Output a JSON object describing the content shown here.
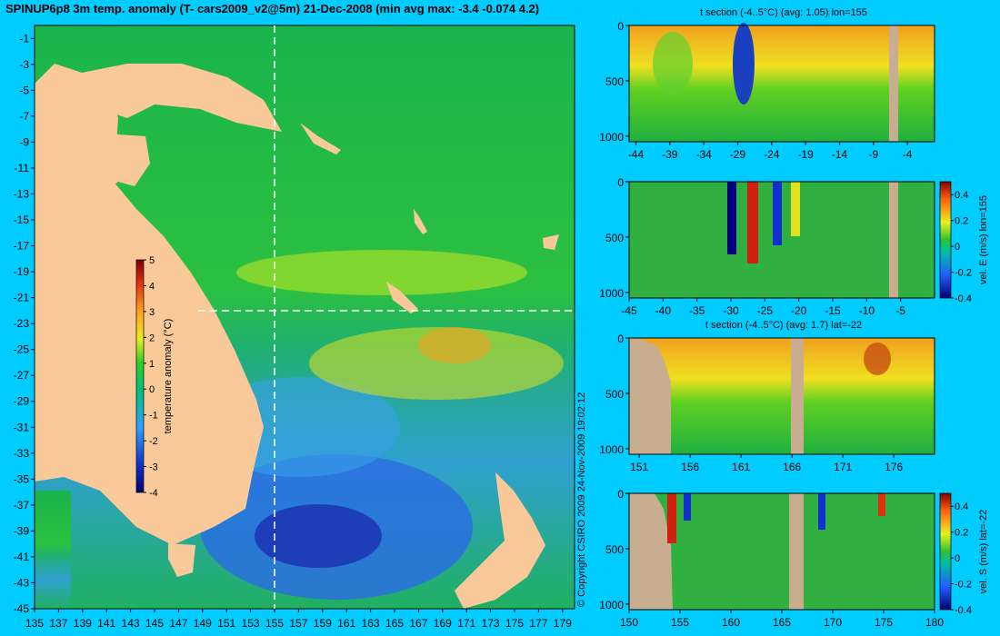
{
  "header": {
    "title": "SPINUP6p8 3m temp. anomaly (T- cars2009_v2@5m) 21-Dec-2008 (min avg max: -3.4 -0.074 4.2)"
  },
  "colors": {
    "background": "#00ccff",
    "land": "#f9c99a",
    "section_land": "#c8ad90",
    "ocean_base": "#16b04a"
  },
  "copyright": "© Copyright CSIRO 2009   24-Nov-2009 19:02:12",
  "chart_data": [
    {
      "type": "heatmap",
      "id": "map",
      "title": "",
      "xlabel": "",
      "ylabel": "",
      "x_ticks": [
        "135",
        "137",
        "139",
        "141",
        "143",
        "145",
        "147",
        "149",
        "151",
        "153",
        "155",
        "157",
        "159",
        "161",
        "163",
        "165",
        "167",
        "169",
        "171",
        "173",
        "175",
        "177",
        "179"
      ],
      "y_ticks": [
        "-1",
        "-3",
        "-5",
        "-7",
        "-9",
        "-11",
        "-13",
        "-15",
        "-17",
        "-19",
        "-21",
        "-23",
        "-25",
        "-27",
        "-29",
        "-31",
        "-33",
        "-35",
        "-37",
        "-39",
        "-41",
        "-43",
        "-45"
      ],
      "xlim": [
        135,
        180
      ],
      "ylim": [
        -45,
        0
      ],
      "section_lines": {
        "lon": 155,
        "lat": -22
      },
      "colorbar": {
        "label": "temperature anomaly (°C)",
        "range": [
          -4,
          5
        ],
        "ticks": [
          "5",
          "4",
          "3",
          "2",
          "1",
          "0",
          "-1",
          "-2",
          "-3",
          "-4"
        ]
      }
    },
    {
      "type": "heatmap",
      "id": "t-section-lon",
      "title": "t section (-4..5°C) (avg: 1.05) lon=155",
      "x_ticks": [
        "-44",
        "-39",
        "-34",
        "-29",
        "-24",
        "-19",
        "-14",
        "-9",
        "-4"
      ],
      "xlim": [
        -45,
        0
      ],
      "y_ticks": [
        "0",
        "500",
        "1000"
      ],
      "ylim": [
        1050,
        0
      ]
    },
    {
      "type": "heatmap",
      "id": "vel-e-section",
      "title": "",
      "x_ticks": [
        "-45",
        "-40",
        "-35",
        "-30",
        "-25",
        "-20",
        "-15",
        "-10",
        "-5"
      ],
      "xlim": [
        -45,
        0
      ],
      "y_ticks": [
        "0",
        "500",
        "1000"
      ],
      "ylim": [
        1050,
        0
      ],
      "colorbar": {
        "label": "vel. E (m/s) lon=155",
        "range": [
          -0.4,
          0.5
        ],
        "ticks": [
          "0.4",
          "0.2",
          "0",
          "-0.2",
          "-0.4"
        ]
      }
    },
    {
      "type": "heatmap",
      "id": "t-section-lat",
      "title": "t section (-4..5°C) (avg: 1.7) lat=-22",
      "x_ticks": [
        "151",
        "156",
        "161",
        "166",
        "171",
        "176"
      ],
      "xlim": [
        150,
        180
      ],
      "y_ticks": [
        "0",
        "500",
        "1000"
      ],
      "ylim": [
        1050,
        0
      ]
    },
    {
      "type": "heatmap",
      "id": "vel-s-section",
      "title": "",
      "x_ticks": [
        "150",
        "155",
        "160",
        "165",
        "170",
        "175",
        "180"
      ],
      "xlim": [
        150,
        180
      ],
      "y_ticks": [
        "0",
        "500",
        "1000"
      ],
      "ylim": [
        1050,
        0
      ],
      "colorbar": {
        "label": "vel. S (m/s) lat=-22",
        "range": [
          -0.4,
          0.5
        ],
        "ticks": [
          "0.4",
          "0.2",
          "0",
          "-0.2",
          "-0.4"
        ]
      }
    }
  ]
}
